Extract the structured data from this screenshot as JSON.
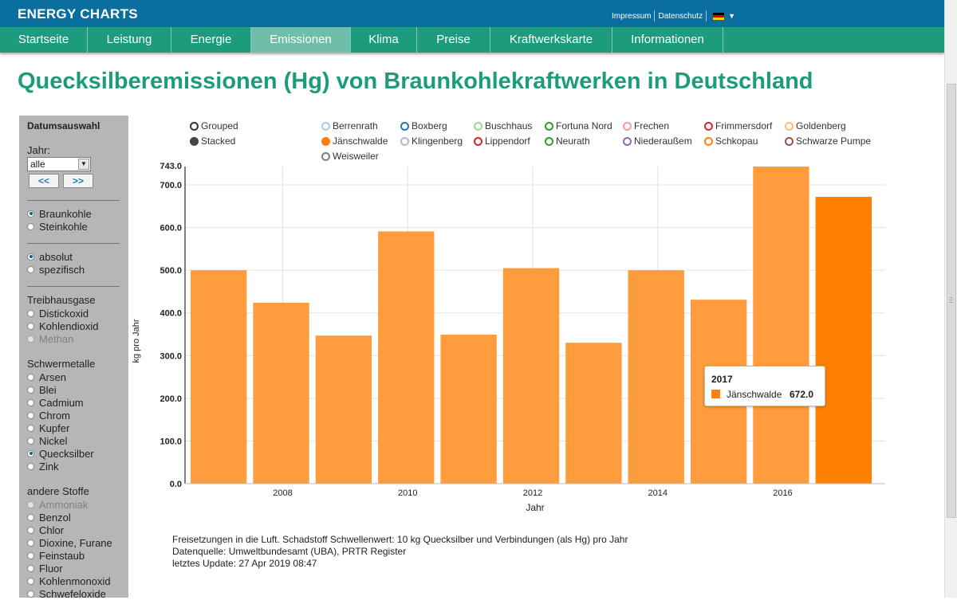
{
  "header": {
    "brand": "ENERGY CHARTS",
    "impressum": "Impressum",
    "datenschutz": "Datenschutz",
    "language_icon": "de-flag-icon"
  },
  "nav": {
    "items": [
      {
        "label": "Startseite"
      },
      {
        "label": "Leistung"
      },
      {
        "label": "Energie"
      },
      {
        "label": "Emissionen",
        "active": true
      },
      {
        "label": "Klima"
      },
      {
        "label": "Preise"
      },
      {
        "label": "Kraftwerkskarte"
      },
      {
        "label": "Informationen"
      }
    ]
  },
  "page_title": "Quecksilberemissionen (Hg) von Braunkohlekraftwerken in Deutschland",
  "sidebar": {
    "heading": "Datumsauswahl",
    "year_label": "Jahr:",
    "year_value": "alle",
    "prev_button": "<<",
    "next_button": ">>",
    "fuel": {
      "braunkohle": "Braunkohle",
      "steinkohle": "Steinkohle"
    },
    "mode": {
      "absolut": "absolut",
      "spezifisch": "spezifisch"
    },
    "treibhausgase": {
      "heading": "Treibhausgase",
      "distickoxid": "Distickoxid",
      "kohlendioxid": "Kohlendioxid",
      "methan": "Methan"
    },
    "schwermetalle": {
      "heading": "Schwermetalle",
      "arsen": "Arsen",
      "blei": "Blei",
      "cadmium": "Cadmium",
      "chrom": "Chrom",
      "kupfer": "Kupfer",
      "nickel": "Nickel",
      "quecksilber": "Quecksilber",
      "zink": "Zink"
    },
    "andere": {
      "heading": "andere Stoffe",
      "ammoniak": "Ammoniak",
      "benzol": "Benzol",
      "chlor": "Chlor",
      "dioxine": "Dioxine, Furane",
      "feinstaub": "Feinstaub",
      "fluor": "Fluor",
      "kohlenmonoxid": "Kohlenmonoxid",
      "schwefeloxide": "Schwefeloxide"
    }
  },
  "legend": {
    "grouped": "Grouped",
    "stacked": "Stacked",
    "plants": {
      "berrenrath": {
        "name": "Berrenrath",
        "color": "#aec7e8"
      },
      "boxberg": {
        "name": "Boxberg",
        "color": "#1f77b4"
      },
      "buschhaus": {
        "name": "Buschhaus",
        "color": "#98df8a"
      },
      "fortuna": {
        "name": "Fortuna Nord",
        "color": "#2ca02c"
      },
      "frechen": {
        "name": "Frechen",
        "color": "#ff9896"
      },
      "frimmersdorf": {
        "name": "Frimmersdorf",
        "color": "#d62728"
      },
      "goldenberg": {
        "name": "Goldenberg",
        "color": "#ffbb78"
      },
      "jaenschwalde": {
        "name": "Jänschwalde",
        "color": "#ff7f0e"
      },
      "klingenberg": {
        "name": "Klingenberg",
        "color": "#c5b0d5"
      },
      "lippendorf": {
        "name": "Lippendorf",
        "color": "#d62728"
      },
      "neurath": {
        "name": "Neurath",
        "color": "#2ca02c"
      },
      "niederaussem": {
        "name": "Niederaußem",
        "color": "#9467bd"
      },
      "schkopau": {
        "name": "Schkopau",
        "color": "#ff7f0e"
      },
      "schwarze_pumpe": {
        "name": "Schwarze Pumpe",
        "color": "#8c564b"
      },
      "weisweiler": {
        "name": "Weisweiler",
        "color": "#7f7f7f"
      }
    }
  },
  "chart_data": {
    "type": "bar",
    "ylabel": "kg pro Jahr",
    "xlabel": "Jahr",
    "ylim": [
      0,
      743
    ],
    "y_max_label": "743.0",
    "y_ticks": [
      "0.0",
      "100.0",
      "200.0",
      "300.0",
      "400.0",
      "500.0",
      "600.0",
      "700.0"
    ],
    "x_ticks": [
      "2008",
      "2010",
      "2012",
      "2014",
      "2016"
    ],
    "categories": [
      "2007",
      "2008",
      "2009",
      "2010",
      "2011",
      "2012",
      "2013",
      "2014",
      "2015",
      "2016",
      "2017"
    ],
    "series": [
      {
        "name": "Jänschwalde",
        "values": [
          500,
          424,
          347,
          591,
          349,
          505,
          330,
          500,
          431,
          743,
          672
        ]
      }
    ],
    "highlighted_category": "2017",
    "bar_color": "#ff9c3d",
    "highlight_color": "#ff7f00"
  },
  "tooltip": {
    "year": "2017",
    "series": "Jänschwalde",
    "value": "672.0"
  },
  "footer": {
    "line1": "Freisetzungen in die Luft. Schadstoff Schwellenwert: 10 kg Quecksilber und Verbindungen (als Hg) pro Jahr",
    "line2": "Datenquelle: Umweltbundesamt (UBA), PRTR Register",
    "line3": "letztes Update: 27 Apr 2019 08:47"
  }
}
